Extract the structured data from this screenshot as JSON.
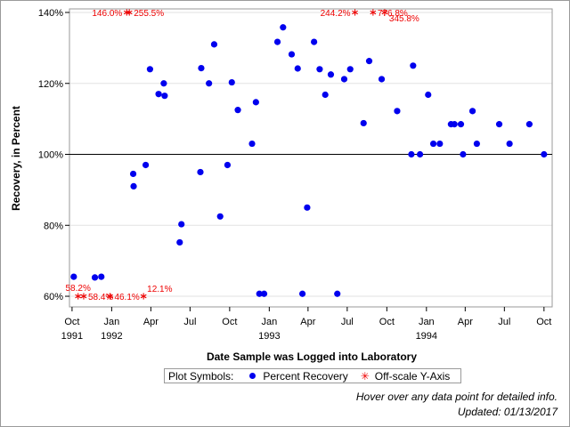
{
  "chart_data": {
    "type": "scatter",
    "xlabel": "Date Sample was Logged into Laboratory",
    "ylabel": "Recovery, in Percent",
    "x_axis": {
      "type": "date",
      "range": [
        "1991-09-25",
        "1994-10-20"
      ],
      "ticks": [
        {
          "date": "1991-10-01",
          "label": "Oct",
          "year": "1991"
        },
        {
          "date": "1992-01-01",
          "label": "Jan",
          "year": "1992"
        },
        {
          "date": "1992-04-01",
          "label": "Apr",
          "year": ""
        },
        {
          "date": "1992-07-01",
          "label": "Jul",
          "year": ""
        },
        {
          "date": "1992-10-01",
          "label": "Oct",
          "year": ""
        },
        {
          "date": "1993-01-01",
          "label": "Jan",
          "year": "1993"
        },
        {
          "date": "1993-04-01",
          "label": "Apr",
          "year": ""
        },
        {
          "date": "1993-07-01",
          "label": "Jul",
          "year": ""
        },
        {
          "date": "1993-10-01",
          "label": "Oct",
          "year": ""
        },
        {
          "date": "1994-01-01",
          "label": "Jan",
          "year": "1994"
        },
        {
          "date": "1994-04-01",
          "label": "Apr",
          "year": ""
        },
        {
          "date": "1994-07-01",
          "label": "Jul",
          "year": ""
        },
        {
          "date": "1994-10-01",
          "label": "Oct",
          "year": ""
        }
      ]
    },
    "y_axis": {
      "range": [
        57,
        141
      ],
      "ticks": [
        {
          "value": 60,
          "label": "60%"
        },
        {
          "value": 80,
          "label": "80%"
        },
        {
          "value": 100,
          "label": "100%"
        },
        {
          "value": 120,
          "label": "120%"
        },
        {
          "value": 140,
          "label": "140%"
        }
      ],
      "reference_line": 100,
      "gridlines": true
    },
    "series": [
      {
        "name": "Percent Recovery",
        "color": "#0000ee",
        "marker": "circle",
        "points": [
          {
            "x": "1991-10-05",
            "y": 65.5
          },
          {
            "x": "1991-11-23",
            "y": 65.3
          },
          {
            "x": "1991-12-08",
            "y": 65.5
          },
          {
            "x": "1992-02-20",
            "y": 94.5
          },
          {
            "x": "1992-02-21",
            "y": 91.0
          },
          {
            "x": "1992-03-20",
            "y": 97.0
          },
          {
            "x": "1992-03-30",
            "y": 124.0
          },
          {
            "x": "1992-04-19",
            "y": 117.0
          },
          {
            "x": "1992-05-01",
            "y": 120.0
          },
          {
            "x": "1992-05-03",
            "y": 116.5
          },
          {
            "x": "1992-06-07",
            "y": 75.2
          },
          {
            "x": "1992-06-11",
            "y": 80.3
          },
          {
            "x": "1992-07-25",
            "y": 95.0
          },
          {
            "x": "1992-07-27",
            "y": 124.3
          },
          {
            "x": "1992-08-14",
            "y": 120.0
          },
          {
            "x": "1992-08-26",
            "y": 131.0
          },
          {
            "x": "1992-09-09",
            "y": 82.5
          },
          {
            "x": "1992-09-26",
            "y": 97.0
          },
          {
            "x": "1992-10-06",
            "y": 120.3
          },
          {
            "x": "1992-10-20",
            "y": 112.5
          },
          {
            "x": "1992-11-22",
            "y": 103.0
          },
          {
            "x": "1992-12-01",
            "y": 114.7
          },
          {
            "x": "1992-12-09",
            "y": 60.7
          },
          {
            "x": "1992-12-20",
            "y": 60.7
          },
          {
            "x": "1993-01-20",
            "y": 131.7
          },
          {
            "x": "1993-02-02",
            "y": 135.8
          },
          {
            "x": "1993-02-22",
            "y": 128.2
          },
          {
            "x": "1993-03-08",
            "y": 124.2
          },
          {
            "x": "1993-03-19",
            "y": 60.7
          },
          {
            "x": "1993-03-30",
            "y": 85.0
          },
          {
            "x": "1993-04-15",
            "y": 131.7
          },
          {
            "x": "1993-04-28",
            "y": 124.0
          },
          {
            "x": "1993-05-11",
            "y": 116.8
          },
          {
            "x": "1993-05-24",
            "y": 122.5
          },
          {
            "x": "1993-06-08",
            "y": 60.7
          },
          {
            "x": "1993-06-24",
            "y": 121.2
          },
          {
            "x": "1993-07-08",
            "y": 124.0
          },
          {
            "x": "1993-08-08",
            "y": 108.8
          },
          {
            "x": "1993-08-21",
            "y": 126.3
          },
          {
            "x": "1993-09-19",
            "y": 121.2
          },
          {
            "x": "1993-10-25",
            "y": 112.2
          },
          {
            "x": "1993-11-27",
            "y": 100.0
          },
          {
            "x": "1993-12-01",
            "y": 125.0
          },
          {
            "x": "1993-12-17",
            "y": 100.0
          },
          {
            "x": "1994-01-05",
            "y": 116.8
          },
          {
            "x": "1994-01-17",
            "y": 103.0
          },
          {
            "x": "1994-02-01",
            "y": 103.0
          },
          {
            "x": "1994-02-27",
            "y": 108.5
          },
          {
            "x": "1994-03-07",
            "y": 108.5
          },
          {
            "x": "1994-03-22",
            "y": 108.5
          },
          {
            "x": "1994-03-27",
            "y": 100.0
          },
          {
            "x": "1994-04-18",
            "y": 112.2
          },
          {
            "x": "1994-04-28",
            "y": 103.0
          },
          {
            "x": "1994-06-19",
            "y": 108.5
          },
          {
            "x": "1994-07-13",
            "y": 103.0
          },
          {
            "x": "1994-08-28",
            "y": 108.5
          },
          {
            "x": "1994-10-01",
            "y": 100.0
          }
        ]
      },
      {
        "name": "Off-scale Y-Axis",
        "color": "#ee0000",
        "marker": "star",
        "points": [
          {
            "x": "1992-02-05",
            "y": 140,
            "label": "146.0%",
            "label_anchor": "end"
          },
          {
            "x": "1992-02-11",
            "y": 140,
            "label": "255.5%",
            "label_anchor": "start"
          },
          {
            "x": "1993-07-19",
            "y": 140,
            "label": "244.2%",
            "label_anchor": "end"
          },
          {
            "x": "1993-08-30",
            "y": 140,
            "label": "776.8%",
            "label_anchor": "start"
          },
          {
            "x": "1993-09-26",
            "y": 140,
            "label": "345.8%",
            "label_anchor": "start-below"
          },
          {
            "x": "1991-10-15",
            "y": 60,
            "label": "58.2%",
            "label_anchor": "above"
          },
          {
            "x": "1991-10-28",
            "y": 60,
            "label": "58.4%",
            "label_anchor": "start"
          },
          {
            "x": "1991-12-28",
            "y": 60,
            "label": "46.1%",
            "label_anchor": "start"
          },
          {
            "x": "1992-03-15",
            "y": 60,
            "label": "12.1%",
            "label_anchor": "above-start"
          }
        ]
      }
    ]
  },
  "legend": {
    "title": "Plot Symbols:",
    "items": [
      {
        "label": "Percent Recovery",
        "symbol": "dot"
      },
      {
        "label": "Off-scale Y-Axis",
        "symbol": "star"
      }
    ]
  },
  "notes": {
    "hover": "Hover over any data point for detailed info.",
    "updated": "Updated: 01/13/2017"
  }
}
